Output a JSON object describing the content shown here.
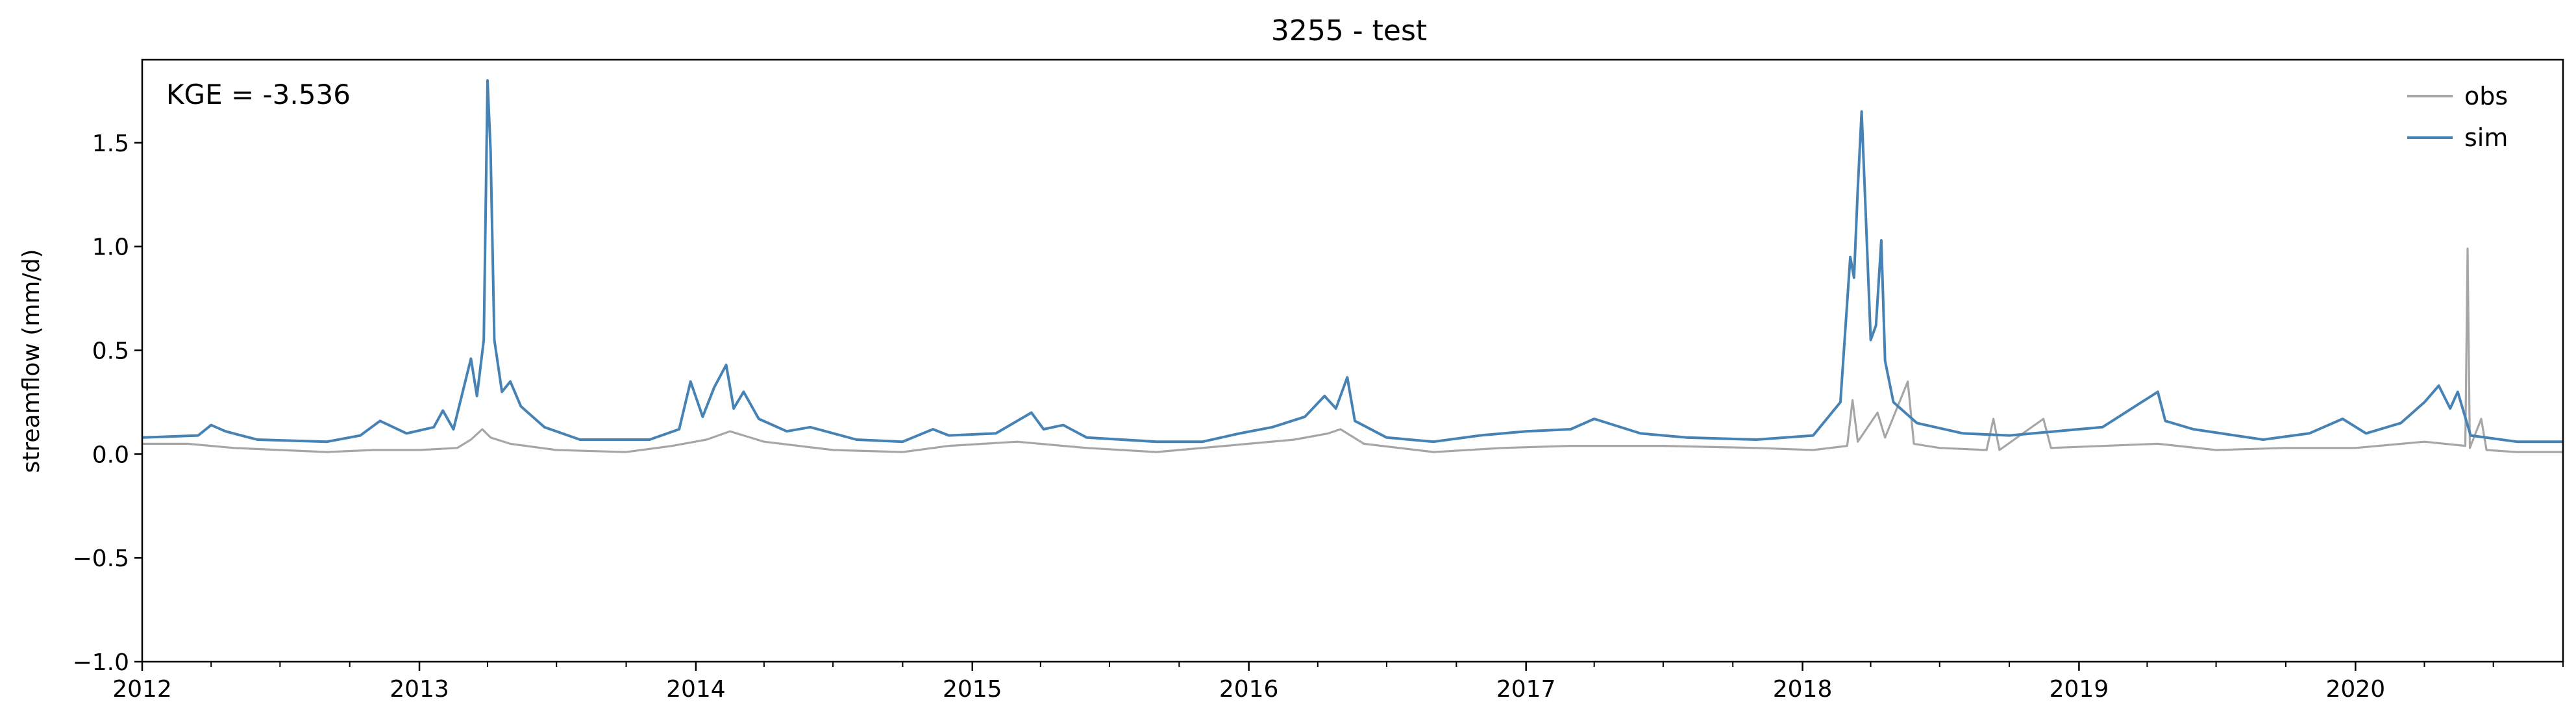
{
  "chart_data": {
    "type": "line",
    "title": "3255 - test",
    "ylabel": "streamflow (mm/d)",
    "xlabel": "",
    "xlim": [
      "2012-01-01",
      "2020-10-01"
    ],
    "ylim": [
      -1.0,
      1.9
    ],
    "x_ticks": [
      "2012",
      "2013",
      "2014",
      "2015",
      "2016",
      "2017",
      "2018",
      "2019",
      "2020"
    ],
    "y_ticks": [
      "−1.0",
      "−0.5",
      "0.0",
      "0.5",
      "1.0",
      "1.5"
    ],
    "annotation": "KGE = -3.536",
    "legend": {
      "placement": "top-right",
      "entries": [
        "obs",
        "sim"
      ]
    },
    "grid": false,
    "series": [
      {
        "name": "obs",
        "color": "#a6a6a6",
        "points": [
          [
            "2012-01-01",
            0.05
          ],
          [
            "2012-03-01",
            0.05
          ],
          [
            "2012-05-01",
            0.03
          ],
          [
            "2012-07-01",
            0.02
          ],
          [
            "2012-09-01",
            0.01
          ],
          [
            "2012-11-01",
            0.02
          ],
          [
            "2013-01-01",
            0.02
          ],
          [
            "2013-02-20",
            0.03
          ],
          [
            "2013-03-10",
            0.07
          ],
          [
            "2013-03-25",
            0.12
          ],
          [
            "2013-04-05",
            0.08
          ],
          [
            "2013-05-01",
            0.05
          ],
          [
            "2013-07-01",
            0.02
          ],
          [
            "2013-10-01",
            0.01
          ],
          [
            "2013-12-01",
            0.04
          ],
          [
            "2014-01-15",
            0.07
          ],
          [
            "2014-02-15",
            0.11
          ],
          [
            "2014-04-01",
            0.06
          ],
          [
            "2014-07-01",
            0.02
          ],
          [
            "2014-10-01",
            0.01
          ],
          [
            "2014-12-01",
            0.04
          ],
          [
            "2015-03-01",
            0.06
          ],
          [
            "2015-06-01",
            0.03
          ],
          [
            "2015-09-01",
            0.01
          ],
          [
            "2015-12-01",
            0.04
          ],
          [
            "2016-03-01",
            0.07
          ],
          [
            "2016-04-15",
            0.1
          ],
          [
            "2016-05-01",
            0.12
          ],
          [
            "2016-06-01",
            0.05
          ],
          [
            "2016-09-01",
            0.01
          ],
          [
            "2016-12-01",
            0.03
          ],
          [
            "2017-03-01",
            0.04
          ],
          [
            "2017-07-01",
            0.04
          ],
          [
            "2017-11-01",
            0.03
          ],
          [
            "2018-01-15",
            0.02
          ],
          [
            "2018-03-01",
            0.04
          ],
          [
            "2018-03-08",
            0.26
          ],
          [
            "2018-03-15",
            0.06
          ],
          [
            "2018-04-10",
            0.2
          ],
          [
            "2018-04-20",
            0.08
          ],
          [
            "2018-05-20",
            0.35
          ],
          [
            "2018-05-28",
            0.05
          ],
          [
            "2018-07-01",
            0.03
          ],
          [
            "2018-09-01",
            0.02
          ],
          [
            "2018-09-10",
            0.17
          ],
          [
            "2018-09-18",
            0.02
          ],
          [
            "2018-11-15",
            0.17
          ],
          [
            "2018-11-25",
            0.03
          ],
          [
            "2019-04-15",
            0.05
          ],
          [
            "2019-07-01",
            0.02
          ],
          [
            "2019-10-01",
            0.03
          ],
          [
            "2020-01-01",
            0.03
          ],
          [
            "2020-04-01",
            0.06
          ],
          [
            "2020-05-25",
            0.04
          ],
          [
            "2020-05-28",
            0.99
          ],
          [
            "2020-05-31",
            0.03
          ],
          [
            "2020-06-15",
            0.17
          ],
          [
            "2020-06-22",
            0.02
          ],
          [
            "2020-08-01",
            0.01
          ],
          [
            "2020-10-01",
            0.01
          ]
        ]
      },
      {
        "name": "sim",
        "color": "#4682b4",
        "points": [
          [
            "2012-01-01",
            0.08
          ],
          [
            "2012-03-15",
            0.09
          ],
          [
            "2012-04-01",
            0.14
          ],
          [
            "2012-04-20",
            0.11
          ],
          [
            "2012-06-01",
            0.07
          ],
          [
            "2012-09-01",
            0.06
          ],
          [
            "2012-10-15",
            0.09
          ],
          [
            "2012-11-10",
            0.16
          ],
          [
            "2012-12-15",
            0.1
          ],
          [
            "2013-01-20",
            0.13
          ],
          [
            "2013-02-01",
            0.21
          ],
          [
            "2013-02-15",
            0.12
          ],
          [
            "2013-03-10",
            0.46
          ],
          [
            "2013-03-18",
            0.28
          ],
          [
            "2013-03-27",
            0.55
          ],
          [
            "2013-04-01",
            1.8
          ],
          [
            "2013-04-05",
            1.46
          ],
          [
            "2013-04-10",
            0.55
          ],
          [
            "2013-04-20",
            0.3
          ],
          [
            "2013-05-01",
            0.35
          ],
          [
            "2013-05-15",
            0.23
          ],
          [
            "2013-06-15",
            0.13
          ],
          [
            "2013-08-01",
            0.07
          ],
          [
            "2013-11-01",
            0.07
          ],
          [
            "2013-12-10",
            0.12
          ],
          [
            "2013-12-25",
            0.35
          ],
          [
            "2014-01-10",
            0.18
          ],
          [
            "2014-01-25",
            0.32
          ],
          [
            "2014-02-10",
            0.43
          ],
          [
            "2014-02-20",
            0.22
          ],
          [
            "2014-03-05",
            0.3
          ],
          [
            "2014-03-25",
            0.17
          ],
          [
            "2014-05-01",
            0.11
          ],
          [
            "2014-06-01",
            0.13
          ],
          [
            "2014-08-01",
            0.07
          ],
          [
            "2014-10-01",
            0.06
          ],
          [
            "2014-11-10",
            0.12
          ],
          [
            "2014-12-01",
            0.09
          ],
          [
            "2015-02-01",
            0.1
          ],
          [
            "2015-03-20",
            0.2
          ],
          [
            "2015-04-05",
            0.12
          ],
          [
            "2015-05-01",
            0.14
          ],
          [
            "2015-06-01",
            0.08
          ],
          [
            "2015-09-01",
            0.06
          ],
          [
            "2015-11-01",
            0.06
          ],
          [
            "2015-12-20",
            0.1
          ],
          [
            "2016-02-01",
            0.13
          ],
          [
            "2016-03-15",
            0.18
          ],
          [
            "2016-04-10",
            0.28
          ],
          [
            "2016-04-25",
            0.22
          ],
          [
            "2016-05-10",
            0.37
          ],
          [
            "2016-05-20",
            0.16
          ],
          [
            "2016-07-01",
            0.08
          ],
          [
            "2016-09-01",
            0.06
          ],
          [
            "2016-11-01",
            0.09
          ],
          [
            "2017-01-01",
            0.11
          ],
          [
            "2017-03-01",
            0.12
          ],
          [
            "2017-04-01",
            0.17
          ],
          [
            "2017-06-01",
            0.1
          ],
          [
            "2017-08-01",
            0.08
          ],
          [
            "2017-11-01",
            0.07
          ],
          [
            "2018-01-15",
            0.09
          ],
          [
            "2018-02-20",
            0.25
          ],
          [
            "2018-03-05",
            0.95
          ],
          [
            "2018-03-10",
            0.85
          ],
          [
            "2018-03-15",
            1.28
          ],
          [
            "2018-03-20",
            1.65
          ],
          [
            "2018-03-25",
            1.2
          ],
          [
            "2018-04-01",
            0.55
          ],
          [
            "2018-04-08",
            0.62
          ],
          [
            "2018-04-15",
            1.03
          ],
          [
            "2018-04-20",
            0.45
          ],
          [
            "2018-05-01",
            0.25
          ],
          [
            "2018-06-01",
            0.15
          ],
          [
            "2018-08-01",
            0.1
          ],
          [
            "2018-10-01",
            0.09
          ],
          [
            "2018-12-01",
            0.11
          ],
          [
            "2019-02-01",
            0.13
          ],
          [
            "2019-04-15",
            0.3
          ],
          [
            "2019-04-25",
            0.16
          ],
          [
            "2019-06-01",
            0.12
          ],
          [
            "2019-09-01",
            0.07
          ],
          [
            "2019-11-01",
            0.1
          ],
          [
            "2019-12-15",
            0.17
          ],
          [
            "2020-01-15",
            0.1
          ],
          [
            "2020-03-01",
            0.15
          ],
          [
            "2020-04-01",
            0.25
          ],
          [
            "2020-04-20",
            0.33
          ],
          [
            "2020-05-05",
            0.22
          ],
          [
            "2020-05-15",
            0.3
          ],
          [
            "2020-06-01",
            0.09
          ],
          [
            "2020-08-01",
            0.06
          ],
          [
            "2020-10-01",
            0.06
          ]
        ]
      }
    ]
  }
}
